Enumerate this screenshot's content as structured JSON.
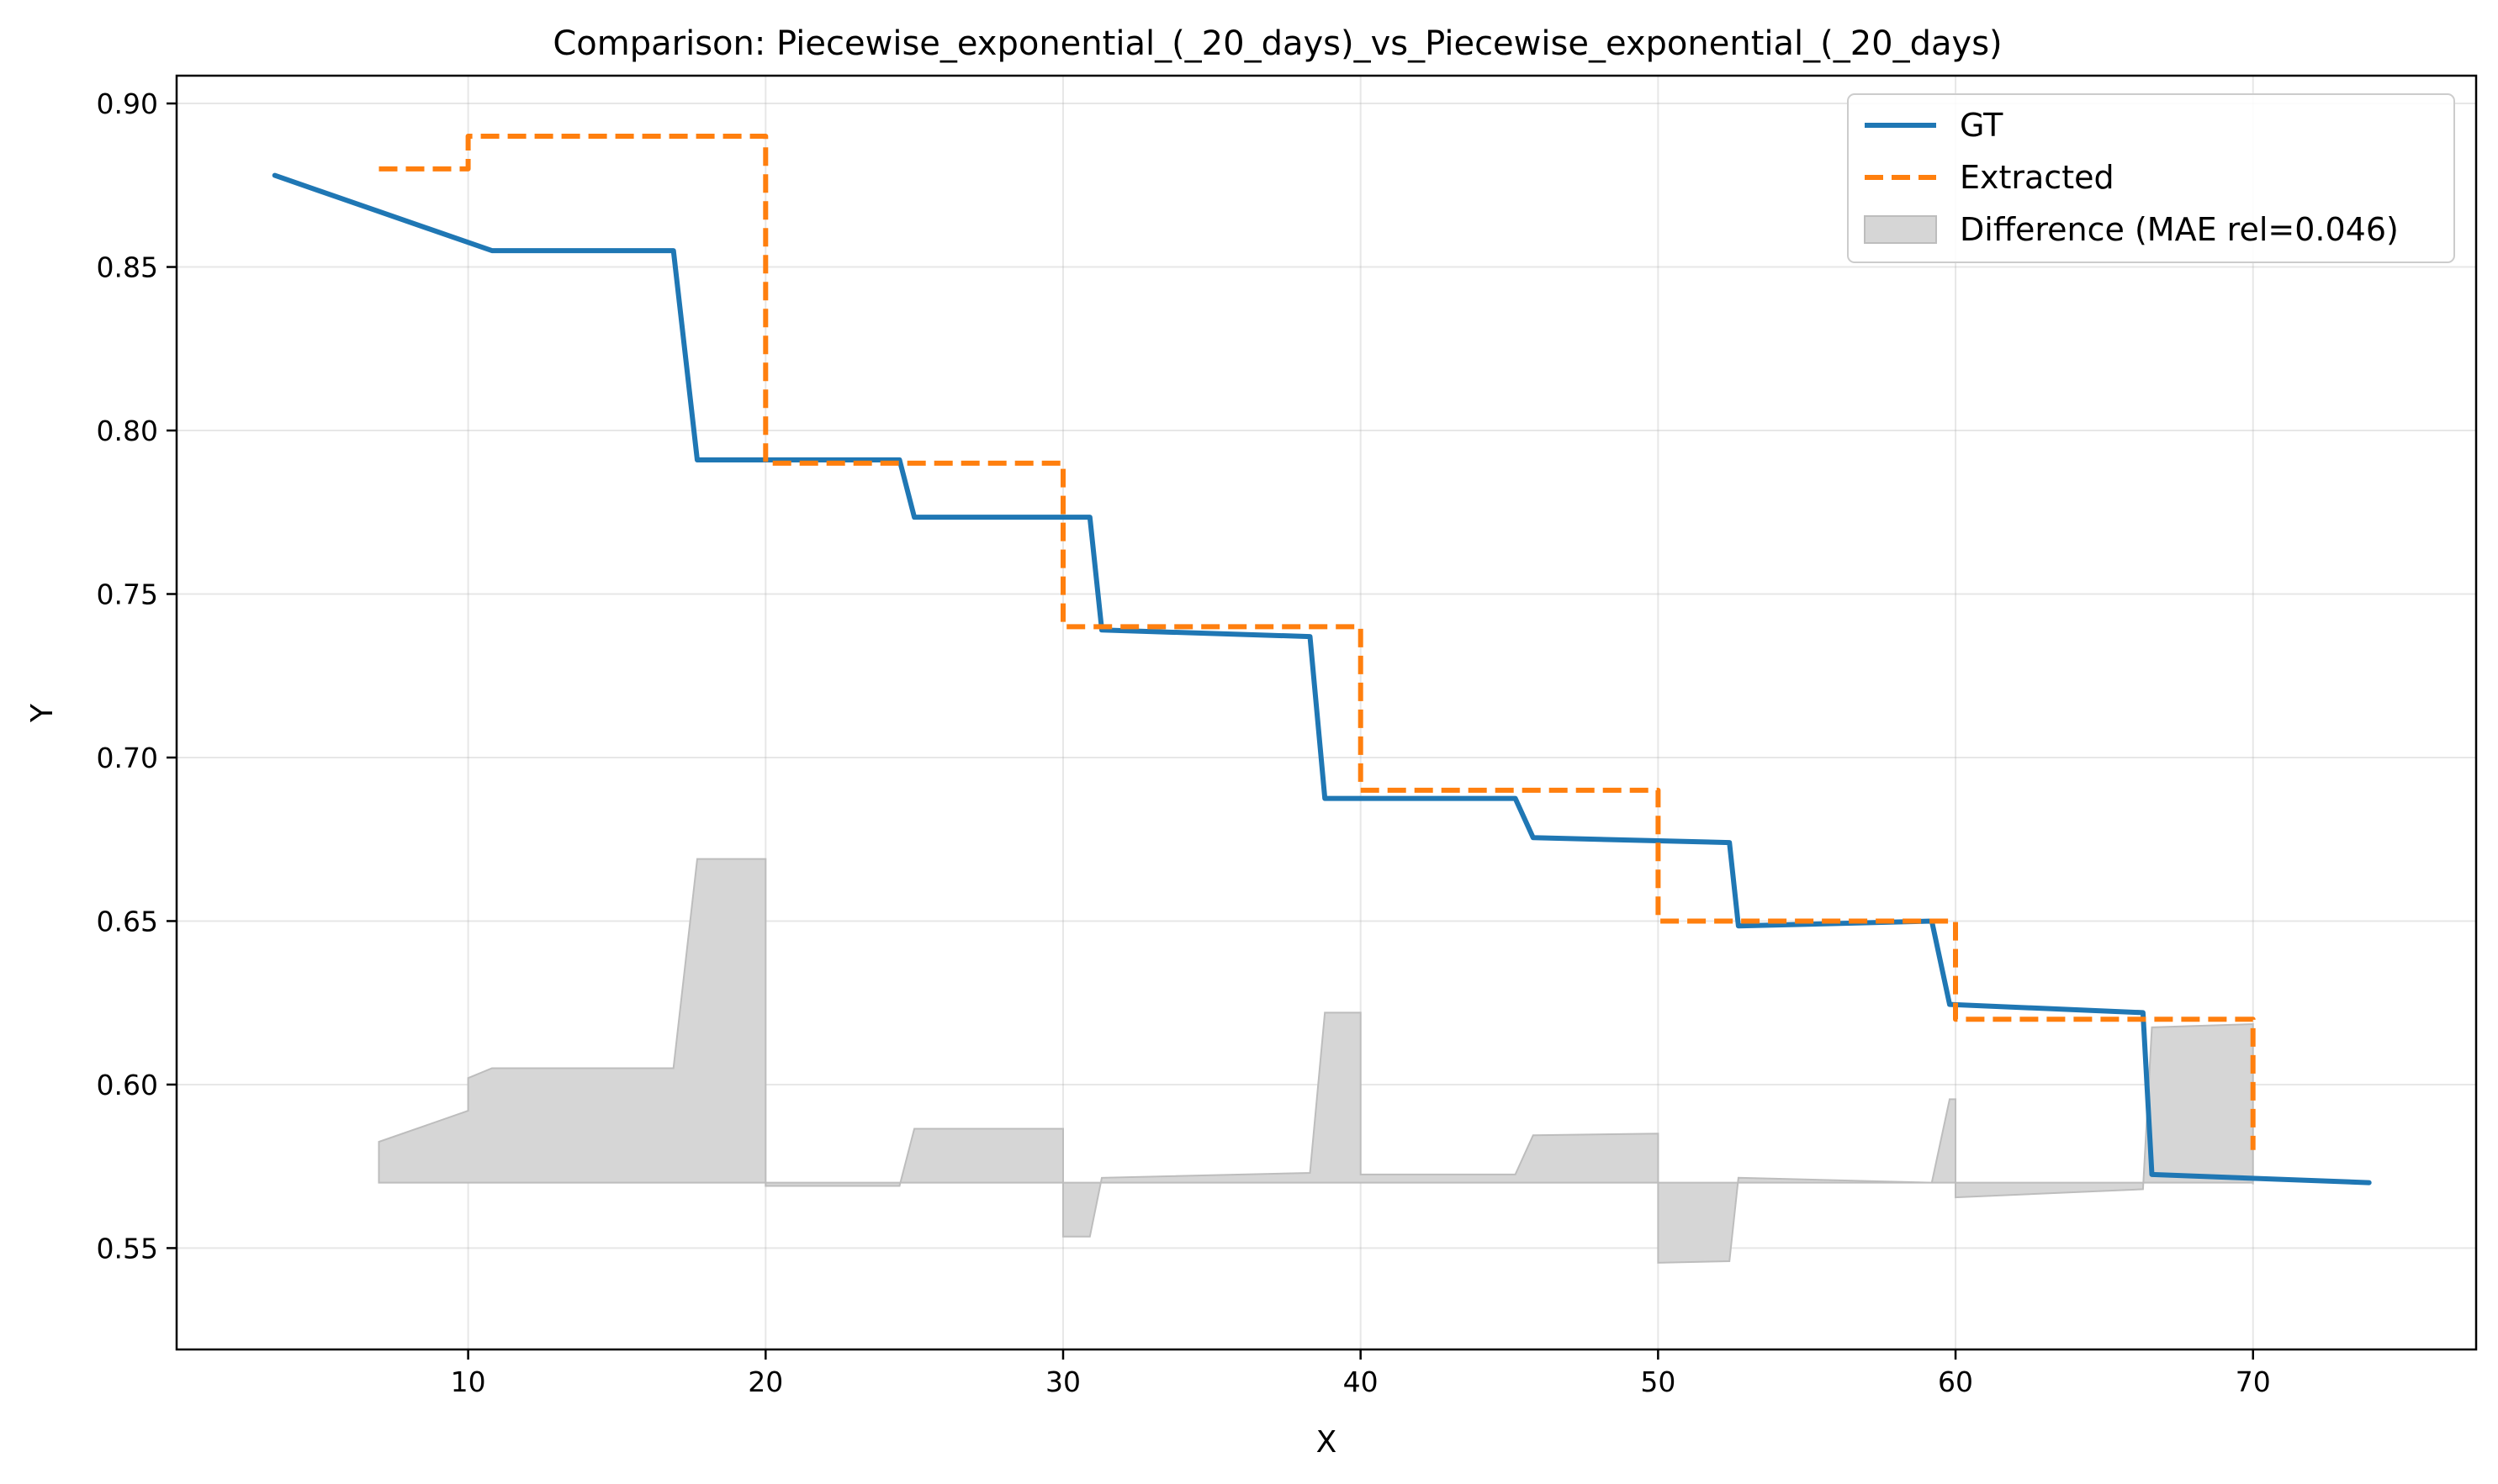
{
  "chart_data": {
    "type": "line",
    "title": "Comparison: Piecewise_exponential_(_20_days)_vs_Piecewise_exponential_(_20_days)",
    "xlabel": "X",
    "ylabel": "Y",
    "xlim": [
      0.2,
      77.5
    ],
    "ylim": [
      0.519,
      0.9085
    ],
    "xticks": [
      10,
      20,
      30,
      40,
      50,
      60,
      70
    ],
    "yticks": [
      0.55,
      0.6,
      0.65,
      0.7,
      0.75,
      0.8,
      0.85,
      0.9
    ],
    "ytick_labels": [
      "0.55",
      "0.60",
      "0.65",
      "0.70",
      "0.75",
      "0.80",
      "0.85",
      "0.90"
    ],
    "grid": true,
    "legend_position": "top-right",
    "legend": [
      "GT",
      "Extracted",
      "Difference (MAE rel=0.046)"
    ],
    "series": [
      {
        "name": "GT",
        "color": "#1f77b4",
        "style": "solid",
        "points": [
          [
            3.5,
            0.878
          ],
          [
            10.8,
            0.855
          ],
          [
            16.9,
            0.855
          ],
          [
            17.7,
            0.791
          ],
          [
            24.5,
            0.791
          ],
          [
            25.0,
            0.7735
          ],
          [
            30.9,
            0.7735
          ],
          [
            31.3,
            0.739
          ],
          [
            38.3,
            0.737
          ],
          [
            38.8,
            0.6875
          ],
          [
            45.2,
            0.6875
          ],
          [
            45.8,
            0.6755
          ],
          [
            52.4,
            0.674
          ],
          [
            52.7,
            0.6485
          ],
          [
            59.2,
            0.65
          ],
          [
            59.8,
            0.6245
          ],
          [
            66.3,
            0.622
          ],
          [
            66.6,
            0.5725
          ],
          [
            73.9,
            0.57
          ]
        ]
      },
      {
        "name": "Extracted",
        "color": "#ff7f0e",
        "style": "dashed",
        "points": [
          [
            7.0,
            0.88
          ],
          [
            10.0,
            0.88
          ],
          [
            10.0,
            0.89
          ],
          [
            20.0,
            0.89
          ],
          [
            20.0,
            0.79
          ],
          [
            30.0,
            0.79
          ],
          [
            30.0,
            0.74
          ],
          [
            40.0,
            0.74
          ],
          [
            40.0,
            0.69
          ],
          [
            50.0,
            0.69
          ],
          [
            50.0,
            0.65
          ],
          [
            60.0,
            0.65
          ],
          [
            60.0,
            0.62
          ],
          [
            70.0,
            0.62
          ],
          [
            70.0,
            0.58
          ]
        ]
      }
    ],
    "difference_fill": {
      "name": "Difference (MAE rel=0.046)",
      "color": "#d6d6d6",
      "baseline": 0.57,
      "points": [
        [
          7.0,
          0.5825
        ],
        [
          10.0,
          0.592
        ],
        [
          10.0,
          0.602
        ],
        [
          10.8,
          0.605
        ],
        [
          16.9,
          0.605
        ],
        [
          17.7,
          0.669
        ],
        [
          20.0,
          0.669
        ],
        [
          20.0,
          0.569
        ],
        [
          24.5,
          0.569
        ],
        [
          25.0,
          0.5865
        ],
        [
          30.0,
          0.5865
        ],
        [
          30.0,
          0.5535
        ],
        [
          30.9,
          0.5535
        ],
        [
          31.3,
          0.5715
        ],
        [
          38.3,
          0.573
        ],
        [
          38.8,
          0.622
        ],
        [
          40.0,
          0.622
        ],
        [
          40.0,
          0.5725
        ],
        [
          45.2,
          0.5725
        ],
        [
          45.8,
          0.5845
        ],
        [
          50.0,
          0.585
        ],
        [
          50.0,
          0.5455
        ],
        [
          52.4,
          0.546
        ],
        [
          52.7,
          0.5715
        ],
        [
          59.2,
          0.57
        ],
        [
          59.8,
          0.5955
        ],
        [
          60.0,
          0.5955
        ],
        [
          60.0,
          0.5655
        ],
        [
          66.3,
          0.568
        ],
        [
          66.6,
          0.6175
        ],
        [
          70.0,
          0.6185
        ],
        [
          70.0,
          0.5695
        ]
      ]
    }
  }
}
